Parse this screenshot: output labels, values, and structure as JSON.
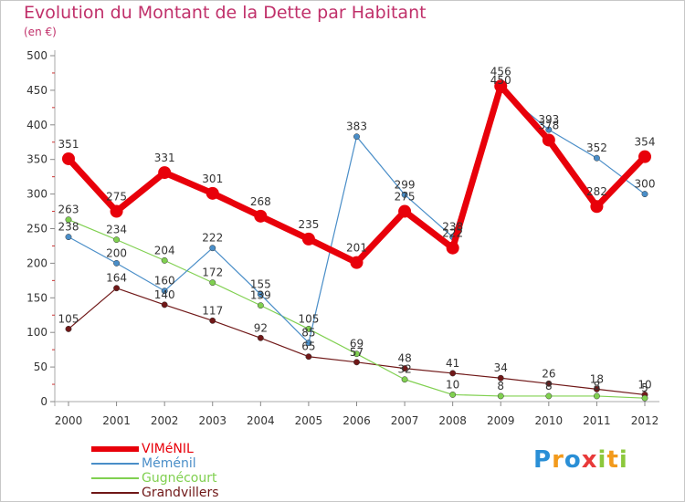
{
  "title": "Evolution du Montant de la Dette par Habitant",
  "unit": "(en €)",
  "logo": {
    "text": "Proxiti",
    "letters": [
      {
        "ch": "P",
        "color": "#2a8fd6"
      },
      {
        "ch": "r",
        "color": "#f29a1c"
      },
      {
        "ch": "o",
        "color": "#2a8fd6"
      },
      {
        "ch": "x",
        "color": "#e83a3a"
      },
      {
        "ch": "i",
        "color": "#8cc83c"
      },
      {
        "ch": "t",
        "color": "#f29a1c"
      },
      {
        "ch": "i",
        "color": "#8cc83c"
      }
    ]
  },
  "chart_data": {
    "type": "line",
    "title": "Evolution du Montant de la Dette par Habitant",
    "ylabel": "(en €)",
    "xlabel": "",
    "categories": [
      "2000",
      "2001",
      "2002",
      "2003",
      "2004",
      "2005",
      "2006",
      "2007",
      "2008",
      "2009",
      "2010",
      "2011",
      "2012"
    ],
    "ylim": [
      0,
      500
    ],
    "yticks": [
      0,
      50,
      100,
      150,
      200,
      250,
      300,
      350,
      400,
      450,
      500
    ],
    "grid": false,
    "legend": "bottom-left",
    "series": [
      {
        "name": "VIMéNIL",
        "color": "#e8000a",
        "values": [
          351,
          275,
          331,
          301,
          268,
          235,
          201,
          275,
          222,
          456,
          378,
          282,
          354
        ]
      },
      {
        "name": "Méménil",
        "color": "#4a8ec8",
        "values": [
          238,
          200,
          160,
          222,
          155,
          85,
          383,
          299,
          238,
          450,
          393,
          352,
          300
        ]
      },
      {
        "name": "Gugnécourt",
        "color": "#80d050",
        "values": [
          263,
          234,
          204,
          172,
          139,
          105,
          69,
          32,
          10,
          8,
          8,
          8,
          5
        ]
      },
      {
        "name": "Grandvillers",
        "color": "#701818",
        "values": [
          105,
          164,
          140,
          117,
          92,
          65,
          57,
          48,
          41,
          34,
          26,
          18,
          10
        ]
      }
    ]
  }
}
